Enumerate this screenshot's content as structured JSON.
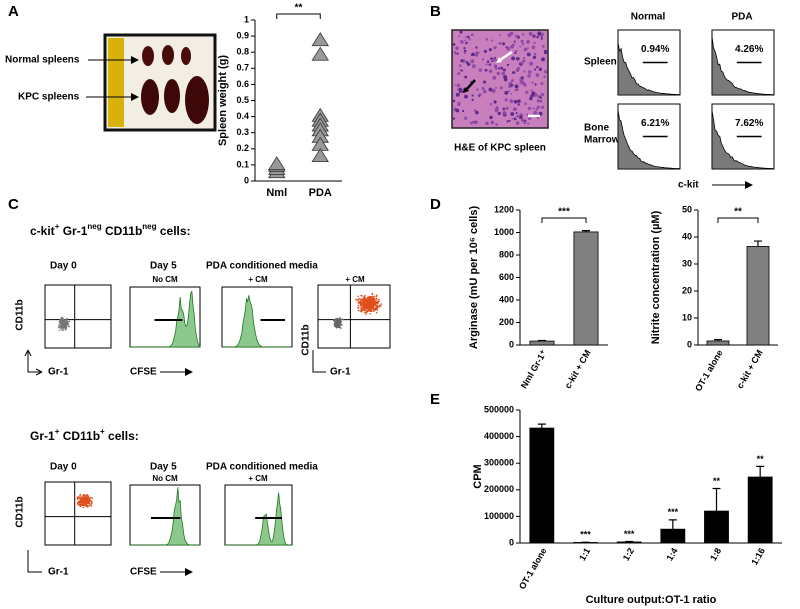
{
  "panel_letters": [
    "A",
    "B",
    "C",
    "D",
    "E"
  ],
  "panel_a": {
    "normal": "Normal spleens",
    "kpc": "KPC spleens"
  },
  "panel_b": {
    "caption": "H&E of KPC spleen",
    "columns": [
      "Normal",
      "PDA"
    ],
    "spleen": "Spleen",
    "marrow": [
      "Bone",
      "Marrow"
    ],
    "percentages": [
      [
        "0.94%",
        "4.26%"
      ],
      [
        "6.21%",
        "7.62%"
      ]
    ],
    "axis": "c-kit"
  },
  "panel_c": {
    "top": {
      "heading": [
        "c-kit",
        "+",
        " Gr-1",
        "neg",
        " CD11b",
        "neg",
        " cells:"
      ],
      "day0": "Day 0",
      "day5": "Day 5",
      "media": "PDA conditioned media",
      "conditions": [
        "No CM",
        "+ CM",
        "+ CM"
      ],
      "y_axis": [
        "CD11b",
        "CD11b"
      ],
      "x_axes": [
        "Gr-1",
        "CFSE",
        "Gr-1"
      ]
    },
    "bottom": {
      "heading": [
        "Gr-1",
        "+",
        " CD11b",
        "+",
        " cells:"
      ],
      "day0": "Day 0",
      "day5": "Day 5",
      "media": "PDA conditioned media",
      "conditions": [
        "No CM",
        "+ CM"
      ],
      "y_axis": [
        "CD11b"
      ],
      "x_axes": [
        "Gr-1",
        "CFSE"
      ]
    }
  },
  "chart_data": [
    {
      "type": "strip",
      "ylabel": "Spleen weight (g)",
      "categories": [
        "Nml",
        "PDA"
      ],
      "values": [
        [
          0.05,
          0.07,
          0.09,
          0.1
        ],
        [
          0.87,
          0.78,
          0.4,
          0.37,
          0.34,
          0.31,
          0.27,
          0.22,
          0.15
        ]
      ],
      "ylim": [
        0,
        1
      ],
      "yticks": [
        0,
        0.1,
        0.2,
        0.3,
        0.4,
        0.5,
        0.6,
        0.7,
        0.8,
        0.9,
        1
      ],
      "significance": "**",
      "color": "#999999"
    },
    {
      "type": "bar",
      "ylabel": "Arginase (mU per 10⁶ cells)",
      "categories": [
        "Nml Gr-1⁺",
        "c-kit + CM"
      ],
      "values": [
        35,
        1005
      ],
      "errors": [
        5,
        12
      ],
      "ylim": [
        0,
        1200
      ],
      "yticks": [
        0,
        200,
        400,
        600,
        800,
        1000,
        1200
      ],
      "significance": "***",
      "color": "#808080"
    },
    {
      "type": "bar",
      "ylabel": "Nitrite concentration (µM)",
      "categories": [
        "OT-1 alone",
        "c-kit + CM"
      ],
      "values": [
        1.5,
        36.5
      ],
      "errors": [
        0.5,
        2
      ],
      "ylim": [
        0,
        50
      ],
      "yticks": [
        0,
        10,
        20,
        30,
        40,
        50
      ],
      "significance": "**",
      "color": "#808080"
    },
    {
      "type": "bar",
      "ylabel": "CPM",
      "xlabel": "Culture output:OT-1 ratio",
      "categories": [
        "OT-1 alone",
        "1:1",
        "1:2",
        "1:4",
        "1:8",
        "1:16"
      ],
      "values": [
        432000,
        2000,
        4000,
        52000,
        120000,
        248000
      ],
      "errors": [
        15000,
        1000,
        1500,
        35000,
        85000,
        40000
      ],
      "value_annotations": [
        null,
        "***",
        "***",
        "***",
        "**",
        "**"
      ],
      "ylim": [
        0,
        500000
      ],
      "yticks": [
        0,
        100000,
        200000,
        300000,
        400000,
        500000
      ],
      "color": "#000000"
    }
  ]
}
